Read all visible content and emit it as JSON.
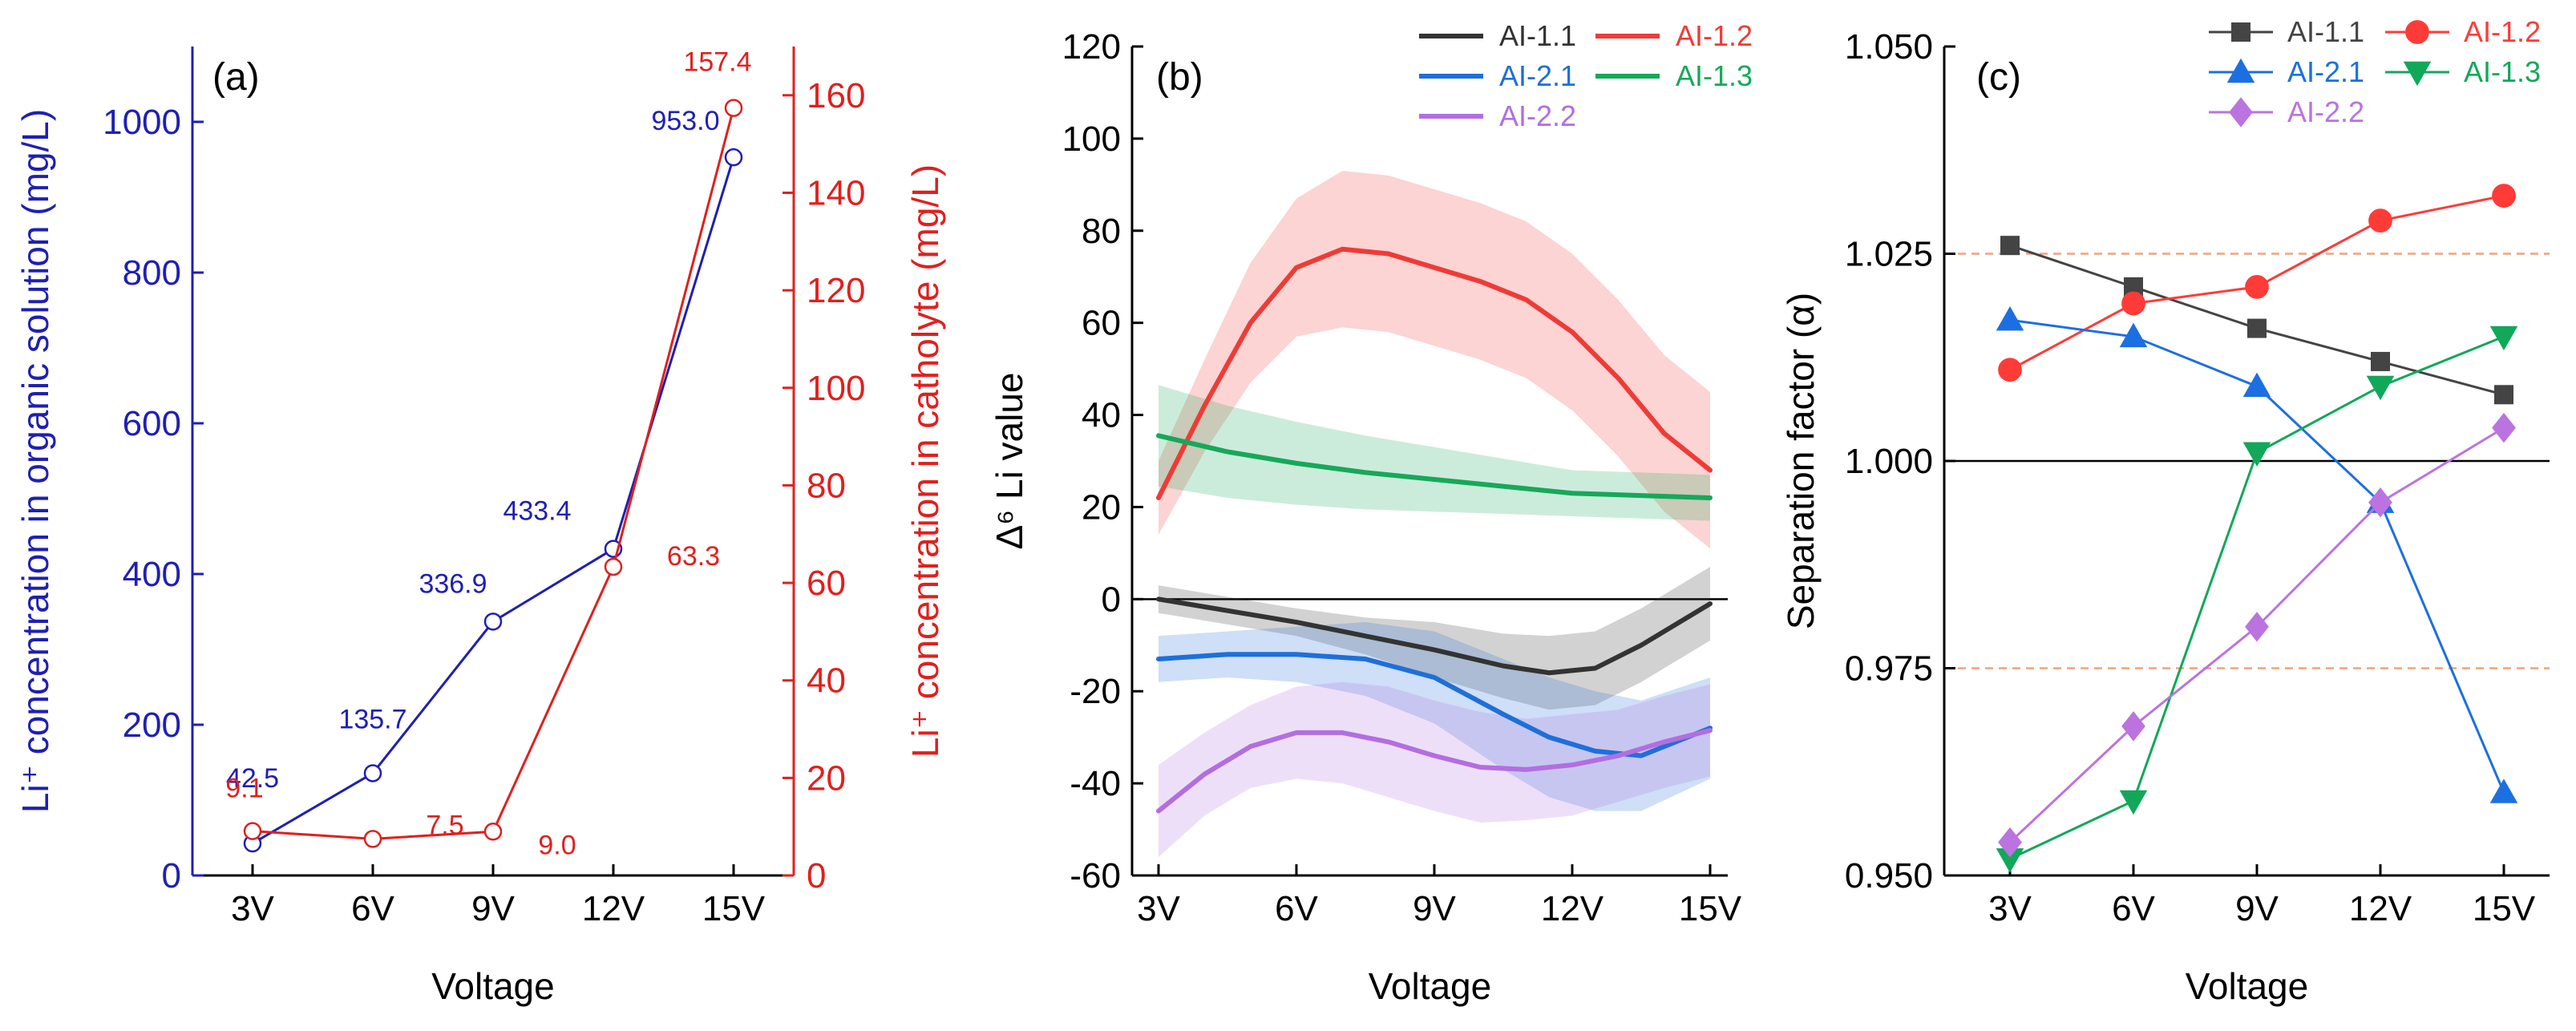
{
  "chart_data": [
    {
      "panel": "(a)",
      "type": "line",
      "categories": [
        "3V",
        "6V",
        "9V",
        "12V",
        "15V"
      ],
      "xlabel": "Voltage",
      "ylabel_left": "Li⁺ concentration in organic solution (mg/L)",
      "ylabel_right": "Li⁺ concentration in catholyte (mg/L)",
      "ylim_left": [
        0,
        1100
      ],
      "yticks_left": [
        0,
        200,
        400,
        600,
        800,
        1000
      ],
      "ylim_right": [
        0,
        170
      ],
      "yticks_right": [
        0,
        20,
        40,
        60,
        80,
        100,
        120,
        140,
        160
      ],
      "series": [
        {
          "name": "Li⁺ concentration in organic solution",
          "axis": "left",
          "color": "#1f1fb4",
          "values": [
            42.5,
            135.7,
            336.9,
            433.4,
            953.0
          ],
          "labels": [
            "42.5",
            "135.7",
            "336.9",
            "433.4",
            "953.0"
          ]
        },
        {
          "name": "Li⁺ concentration in catholyte",
          "axis": "right",
          "color": "#e0201e",
          "values": [
            9.1,
            7.5,
            9.0,
            63.3,
            157.4
          ],
          "labels": [
            "9.1",
            "7.5",
            "9.0",
            "63.3",
            "157.4"
          ]
        }
      ]
    },
    {
      "panel": "(b)",
      "type": "area",
      "categories": [
        "3V",
        "6V",
        "9V",
        "12V",
        "15V"
      ],
      "xlabel": "Voltage",
      "ylabel": "Δ⁶ Li value",
      "ylim": [
        -60,
        120
      ],
      "yticks": [
        -60,
        -40,
        -20,
        0,
        20,
        40,
        60,
        80,
        100,
        120
      ],
      "zero_line": true,
      "series": [
        {
          "name": "AI-1.1",
          "color": "#333333",
          "x": [
            3,
            4.5,
            6,
            7.5,
            9,
            10.5,
            11.5,
            12.5,
            13.5,
            15
          ],
          "values": [
            0,
            -2.5,
            -5,
            -8,
            -11,
            -14.5,
            -16,
            -15,
            -10,
            -1
          ],
          "band": [
            3,
            3,
            3,
            4,
            6,
            7,
            8,
            8,
            8,
            8
          ]
        },
        {
          "name": "AI-1.2",
          "color": "#ef3b36",
          "x": [
            3,
            4,
            5,
            6,
            7,
            8,
            9,
            10,
            11,
            12,
            13,
            14,
            15
          ],
          "values": [
            22,
            42,
            60,
            72,
            76,
            75,
            72,
            69,
            65,
            58,
            48,
            36,
            28
          ],
          "band": [
            8,
            10,
            13,
            15,
            17,
            17,
            17,
            17,
            17,
            17,
            17,
            17,
            17
          ]
        },
        {
          "name": "AI-2.1",
          "color": "#1f6fd9",
          "x": [
            3,
            4.5,
            6,
            7.5,
            9,
            10.5,
            11.5,
            12.5,
            13.5,
            15
          ],
          "values": [
            -13,
            -12,
            -12,
            -13,
            -17,
            -25,
            -30,
            -33,
            -34,
            -28
          ],
          "band": [
            5,
            5,
            6,
            8,
            10,
            12,
            13,
            13,
            12,
            11
          ]
        },
        {
          "name": "AI-1.3",
          "color": "#17a85a",
          "x": [
            3,
            4.5,
            6,
            7.5,
            9,
            10.5,
            12,
            13.5,
            15
          ],
          "values": [
            35.5,
            32,
            29.5,
            27.5,
            26,
            24.5,
            23,
            22.5,
            22
          ],
          "band": [
            11,
            10,
            9,
            8,
            7,
            6,
            5,
            5,
            5
          ]
        },
        {
          "name": "AI-2.2",
          "color": "#b26ee0",
          "x": [
            3,
            4,
            5,
            6,
            7,
            8,
            9,
            10,
            11,
            12,
            13,
            14,
            15
          ],
          "values": [
            -46,
            -38,
            -32,
            -29,
            -29,
            -31,
            -34,
            -36.5,
            -37,
            -36,
            -34,
            -31,
            -28.5
          ],
          "band": [
            10,
            9,
            9,
            10,
            11,
            12,
            12,
            12,
            11,
            11,
            10,
            10,
            10
          ]
        }
      ]
    },
    {
      "panel": "(c)",
      "type": "line",
      "categories": [
        "3V",
        "6V",
        "9V",
        "12V",
        "15V"
      ],
      "xlabel": "Voltage",
      "ylabel": "Separation factor (α)",
      "ylim": [
        0.95,
        1.05
      ],
      "yticks": [
        0.95,
        0.975,
        1.0,
        1.025,
        1.05
      ],
      "ytick_labels": [
        "0.950",
        "0.975",
        "1.000",
        "1.025",
        "1.050"
      ],
      "reference_lines": [
        1.0
      ],
      "dashed_lines": [
        0.975,
        1.025
      ],
      "series": [
        {
          "name": "AI-1.1",
          "color": "#444444",
          "marker": "square",
          "values": [
            1.026,
            1.021,
            1.016,
            1.012,
            1.008
          ]
        },
        {
          "name": "AI-1.2",
          "color": "#ff3b38",
          "marker": "circle",
          "values": [
            1.011,
            1.019,
            1.021,
            1.029,
            1.032
          ]
        },
        {
          "name": "AI-2.1",
          "color": "#1c6fe0",
          "marker": "triangle-up",
          "values": [
            1.017,
            1.015,
            1.009,
            0.995,
            0.96
          ]
        },
        {
          "name": "AI-1.3",
          "color": "#11a85a",
          "marker": "triangle-down",
          "values": [
            0.952,
            0.959,
            1.001,
            1.009,
            1.015
          ]
        },
        {
          "name": "AI-2.2",
          "color": "#bb73e0",
          "marker": "diamond",
          "values": [
            0.954,
            0.968,
            0.98,
            0.995,
            1.004
          ]
        }
      ]
    }
  ]
}
